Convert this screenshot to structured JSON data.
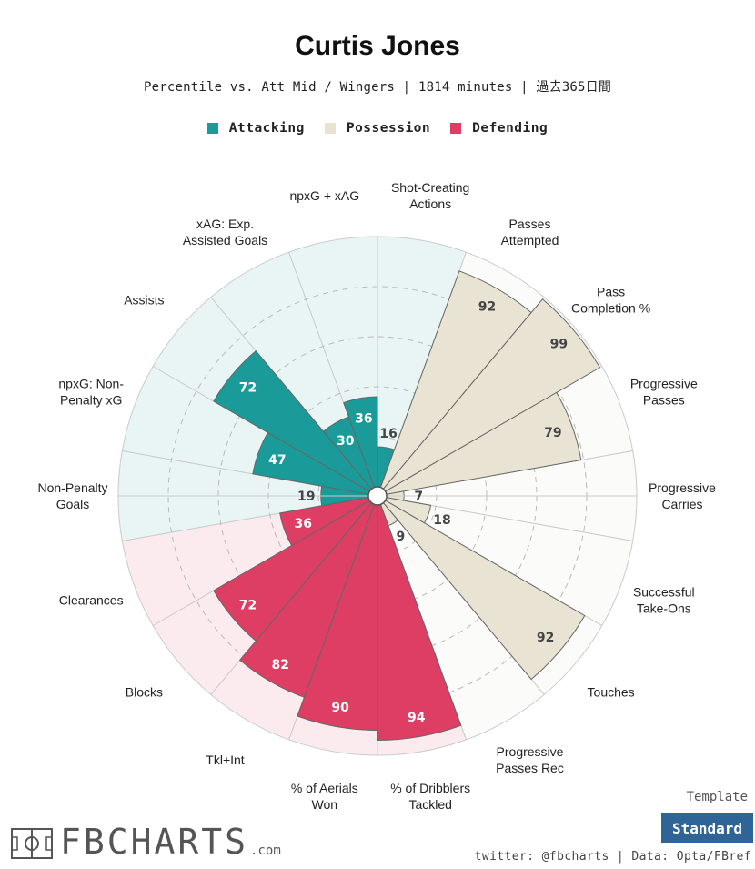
{
  "header": {
    "title": "Curtis Jones",
    "subtitle": "Percentile vs. Att Mid / Wingers | 1814 minutes | 過去365日間"
  },
  "legend": [
    {
      "label": "Attacking",
      "color": "#1a9b9a"
    },
    {
      "label": "Possession",
      "color": "#e8e3d2"
    },
    {
      "label": "Defending",
      "color": "#de3e63"
    }
  ],
  "colors": {
    "attacking_fill": "#1a9b9a",
    "attacking_bg": "#e9f5f5",
    "possession_fill": "#e8e3d2",
    "possession_bg": "#fbfbf9",
    "defending_fill": "#de3e63",
    "defending_bg": "#fcebee"
  },
  "chart_data": {
    "type": "polar-bar",
    "scale": [
      0,
      100
    ],
    "categories": [
      {
        "label": "Shot-Creating\nActions",
        "value": 16,
        "group": "Attacking"
      },
      {
        "label": "Passes\nAttempted",
        "value": 92,
        "group": "Possession"
      },
      {
        "label": "Pass\nCompletion %",
        "value": 99,
        "group": "Possession"
      },
      {
        "label": "Progressive\nPasses",
        "value": 79,
        "group": "Possession"
      },
      {
        "label": "Progressive\nCarries",
        "value": 7,
        "group": "Possession"
      },
      {
        "label": "Successful\nTake-Ons",
        "value": 18,
        "group": "Possession"
      },
      {
        "label": "Touches",
        "value": 92,
        "group": "Possession"
      },
      {
        "label": "Progressive\nPasses Rec",
        "value": 9,
        "group": "Possession"
      },
      {
        "label": "% of Dribblers\nTackled",
        "value": 94,
        "group": "Defending"
      },
      {
        "label": "% of Aerials\nWon",
        "value": 90,
        "group": "Defending"
      },
      {
        "label": "Tkl+Int",
        "value": 82,
        "group": "Defending"
      },
      {
        "label": "Blocks",
        "value": 72,
        "group": "Defending"
      },
      {
        "label": "Clearances",
        "value": 36,
        "group": "Defending"
      },
      {
        "label": "Non-Penalty\nGoals",
        "value": 19,
        "group": "Attacking"
      },
      {
        "label": "npxG: Non-\nPenalty xG",
        "value": 47,
        "group": "Attacking"
      },
      {
        "label": "Assists",
        "value": 72,
        "group": "Attacking"
      },
      {
        "label": "xAG: Exp.\nAssisted Goals",
        "value": 30,
        "group": "Attacking"
      },
      {
        "label": "npxG + xAG",
        "value": 36,
        "group": "Attacking"
      }
    ]
  },
  "footer": {
    "template_label": "Template",
    "template_button": "Standard",
    "credit": "twitter: @fbcharts | Data: Opta/FBref",
    "logo_word": "FBCHARTS",
    "logo_suffix": ".com"
  }
}
